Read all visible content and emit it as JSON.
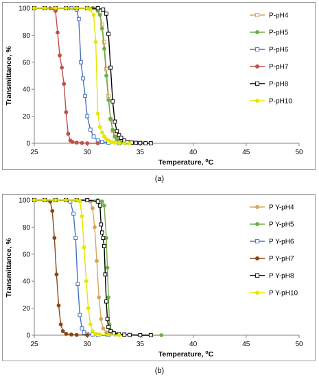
{
  "captions": {
    "a": "(a)",
    "b": "(b)"
  },
  "chart_data": [
    {
      "type": "line",
      "panel": "a",
      "xlabel": "Temperature, °C",
      "xlabel_parts": {
        "main": "Temperature, ",
        "sup": "o",
        "tail": "C"
      },
      "ylabel": "Transmittance, %",
      "xlim": [
        25,
        50
      ],
      "ylim": [
        0,
        100
      ],
      "xticks": [
        25,
        30,
        35,
        40,
        45,
        50
      ],
      "yticks": [
        0,
        20,
        40,
        60,
        80,
        100
      ],
      "grid": false,
      "legend": "right",
      "series": [
        {
          "name": "P-pH4",
          "color": "#d4a85a",
          "marker": "square",
          "x": [
            25,
            26,
            27,
            28,
            29,
            30,
            30.5,
            31,
            31.2,
            31.4,
            31.6,
            31.8,
            32,
            32.2,
            32.4,
            32.6,
            32.8,
            33,
            33.3,
            33.6,
            34,
            35
          ],
          "y": [
            100,
            100,
            100,
            100,
            100,
            100,
            100,
            99,
            96,
            88,
            75,
            55,
            35,
            18,
            9,
            5,
            3,
            1.5,
            0.8,
            0.4,
            0.2,
            0
          ]
        },
        {
          "name": "P-pH5",
          "color": "#70ad47",
          "marker": "circle",
          "x": [
            25,
            26,
            27,
            28,
            29,
            30,
            30.5,
            31,
            31.2,
            31.4,
            31.6,
            31.8,
            32,
            32.2,
            32.4,
            32.6,
            32.8,
            33,
            33.3,
            33.6,
            34,
            35
          ],
          "y": [
            100,
            100,
            100,
            100,
            100,
            100,
            100,
            98,
            95,
            85,
            70,
            50,
            32,
            18,
            10,
            5,
            3,
            1.5,
            0.8,
            0.4,
            0.2,
            0
          ]
        },
        {
          "name": "P-pH6",
          "color": "#4472c4",
          "marker": "square",
          "x": [
            25,
            26,
            27,
            28,
            28.5,
            29,
            29.2,
            29.4,
            29.6,
            29.8,
            30,
            30.3,
            30.6,
            31,
            31.4,
            32,
            33
          ],
          "y": [
            100,
            100,
            100,
            100,
            100,
            99,
            92,
            60,
            48,
            35,
            20,
            10,
            5,
            2,
            1,
            0.5,
            0
          ]
        },
        {
          "name": "P-pH7",
          "color": "#c0504d",
          "marker": "circle",
          "x": [
            25,
            26,
            26.5,
            27,
            27.2,
            27.4,
            27.6,
            27.8,
            28,
            28.2,
            28.4,
            28.6,
            29,
            29.5,
            30,
            31
          ],
          "y": [
            100,
            100,
            100,
            98,
            82,
            65,
            56,
            44,
            23,
            7,
            2,
            1,
            0.5,
            0.2,
            0,
            0
          ]
        },
        {
          "name": "P-pH8",
          "color": "#000000",
          "marker": "square",
          "x": [
            25,
            26,
            27,
            28,
            29,
            30,
            31,
            31.5,
            31.8,
            32,
            32.2,
            32.4,
            32.6,
            32.8,
            33,
            33.2,
            33.5,
            33.8,
            34.2,
            34.6,
            35,
            35.5,
            36
          ],
          "y": [
            100,
            100,
            100,
            100,
            100,
            100,
            100,
            99,
            96,
            81,
            56,
            31,
            16,
            9,
            6,
            4,
            2,
            1,
            0.5,
            0.3,
            0.2,
            0,
            0
          ]
        },
        {
          "name": "P-pH10",
          "color": "#e6e600",
          "marker": "circle",
          "x": [
            25,
            26,
            27,
            28,
            29,
            30,
            30.3,
            30.6,
            30.8,
            31,
            31.2,
            31.4,
            31.6,
            31.8,
            32,
            32.3,
            32.6,
            33,
            33.5,
            34
          ],
          "y": [
            100,
            100,
            100,
            100,
            100,
            100,
            99,
            95,
            75,
            22,
            12,
            8,
            5,
            3,
            2,
            1,
            0.5,
            0.2,
            0,
            0
          ]
        }
      ]
    },
    {
      "type": "line",
      "panel": "b",
      "xlabel": "Temperature, °C",
      "xlabel_parts": {
        "main": "Temperature, ",
        "sup": "o",
        "tail": "C"
      },
      "ylabel": "Transmittance, %",
      "xlim": [
        25,
        50
      ],
      "ylim": [
        0,
        100
      ],
      "xticks": [
        25,
        30,
        35,
        40,
        45,
        50
      ],
      "yticks": [
        0,
        20,
        40,
        60,
        80,
        100
      ],
      "grid": false,
      "legend": "right",
      "series": [
        {
          "name": "P Y-pH4",
          "color": "#d4a85a",
          "marker": "circle",
          "x": [
            25,
            26,
            27,
            28,
            29,
            30,
            30.3,
            30.5,
            30.7,
            30.9,
            31.1,
            31.3,
            31.5,
            31.8,
            32.2,
            32.6,
            33,
            34,
            35
          ],
          "y": [
            100,
            100,
            100,
            100,
            100,
            100,
            99,
            94,
            80,
            55,
            28,
            12,
            5,
            2,
            1,
            0.5,
            0.2,
            0,
            0
          ]
        },
        {
          "name": "P Y-pH5",
          "color": "#70ad47",
          "marker": "circle",
          "x": [
            25,
            26,
            27,
            28,
            29,
            30,
            31,
            31.4,
            31.6,
            31.8,
            31.9,
            32,
            32.1,
            32.3,
            32.6,
            33,
            33.5,
            34,
            35,
            36,
            37
          ],
          "y": [
            100,
            100,
            100,
            100,
            100,
            100,
            100,
            99,
            96,
            72,
            50,
            28,
            8,
            3,
            1.5,
            0.8,
            0.4,
            0.2,
            0,
            0,
            0
          ]
        },
        {
          "name": "P Y-pH6",
          "color": "#4472c4",
          "marker": "square",
          "x": [
            25,
            26,
            27,
            28,
            28.4,
            28.7,
            28.9,
            29.1,
            29.3,
            29.5,
            29.7,
            30,
            30.5,
            31,
            32
          ],
          "y": [
            100,
            100,
            100,
            100,
            99,
            90,
            72,
            38,
            15,
            5,
            2,
            1,
            0.5,
            0,
            0
          ]
        },
        {
          "name": "P Y-pH7",
          "color": "#8b4513",
          "marker": "circle",
          "x": [
            25,
            26,
            26.5,
            26.7,
            26.9,
            27.1,
            27.3,
            27.5,
            27.7,
            28,
            28.5,
            29,
            30
          ],
          "y": [
            100,
            100,
            99,
            92,
            72,
            45,
            22,
            8,
            3,
            1,
            0.5,
            0.2,
            0
          ]
        },
        {
          "name": "P Y-pH8",
          "color": "#000000",
          "marker": "square",
          "x": [
            25,
            26,
            27,
            28,
            29,
            30,
            31,
            31.2,
            31.3,
            31.4,
            31.5,
            31.6,
            31.7,
            31.8,
            31.9,
            32,
            32.2,
            32.5,
            33,
            33.5,
            34,
            35,
            36
          ],
          "y": [
            100,
            100,
            100,
            100,
            100,
            100,
            99,
            96,
            82,
            76,
            72,
            66,
            45,
            25,
            12,
            6,
            3,
            1.5,
            0.8,
            0.4,
            0.2,
            0,
            0
          ]
        },
        {
          "name": "P Y-pH10",
          "color": "#e6e600",
          "marker": "circle",
          "x": [
            25,
            26,
            27,
            28,
            29,
            29.3,
            29.5,
            29.7,
            29.9,
            30.1,
            30.3,
            30.5,
            30.8,
            31.2,
            32,
            33
          ],
          "y": [
            100,
            100,
            100,
            100,
            100,
            99,
            88,
            65,
            40,
            20,
            8,
            3,
            1,
            0.5,
            0.2,
            0
          ]
        }
      ]
    }
  ]
}
